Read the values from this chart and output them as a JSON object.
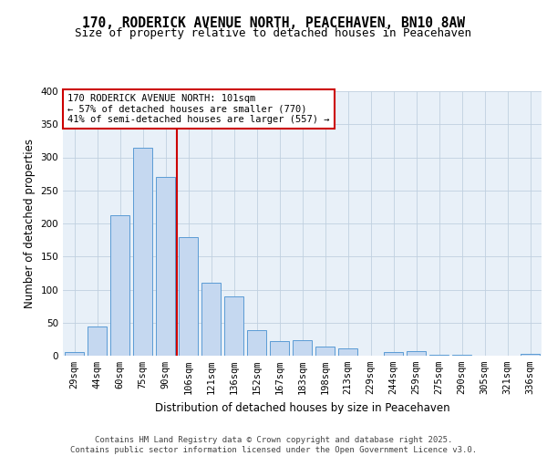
{
  "title": "170, RODERICK AVENUE NORTH, PEACEHAVEN, BN10 8AW",
  "subtitle": "Size of property relative to detached houses in Peacehaven",
  "xlabel": "Distribution of detached houses by size in Peacehaven",
  "ylabel": "Number of detached properties",
  "categories": [
    "29sqm",
    "44sqm",
    "60sqm",
    "75sqm",
    "90sqm",
    "106sqm",
    "121sqm",
    "136sqm",
    "152sqm",
    "167sqm",
    "183sqm",
    "198sqm",
    "213sqm",
    "229sqm",
    "244sqm",
    "259sqm",
    "275sqm",
    "290sqm",
    "305sqm",
    "321sqm",
    "336sqm"
  ],
  "values": [
    5,
    44,
    212,
    315,
    270,
    180,
    110,
    90,
    39,
    22,
    24,
    14,
    11,
    0,
    6,
    7,
    2,
    1,
    0,
    0,
    3
  ],
  "bar_color": "#c5d8f0",
  "bar_edge_color": "#5b9bd5",
  "vline_x": 4.5,
  "vline_color": "#cc0000",
  "annotation_text": "170 RODERICK AVENUE NORTH: 101sqm\n← 57% of detached houses are smaller (770)\n41% of semi-detached houses are larger (557) →",
  "annotation_box_color": "#ffffff",
  "annotation_box_edge_color": "#cc0000",
  "ylim": [
    0,
    400
  ],
  "yticks": [
    0,
    50,
    100,
    150,
    200,
    250,
    300,
    350,
    400
  ],
  "footer": "Contains HM Land Registry data © Crown copyright and database right 2025.\nContains public sector information licensed under the Open Government Licence v3.0.",
  "title_fontsize": 10.5,
  "subtitle_fontsize": 9,
  "label_fontsize": 8.5,
  "tick_fontsize": 7.5,
  "annotation_fontsize": 7.5,
  "footer_fontsize": 6.5,
  "background_color": "#ffffff",
  "grid_color": "#c0d0e0",
  "axes_bg_color": "#e8f0f8"
}
